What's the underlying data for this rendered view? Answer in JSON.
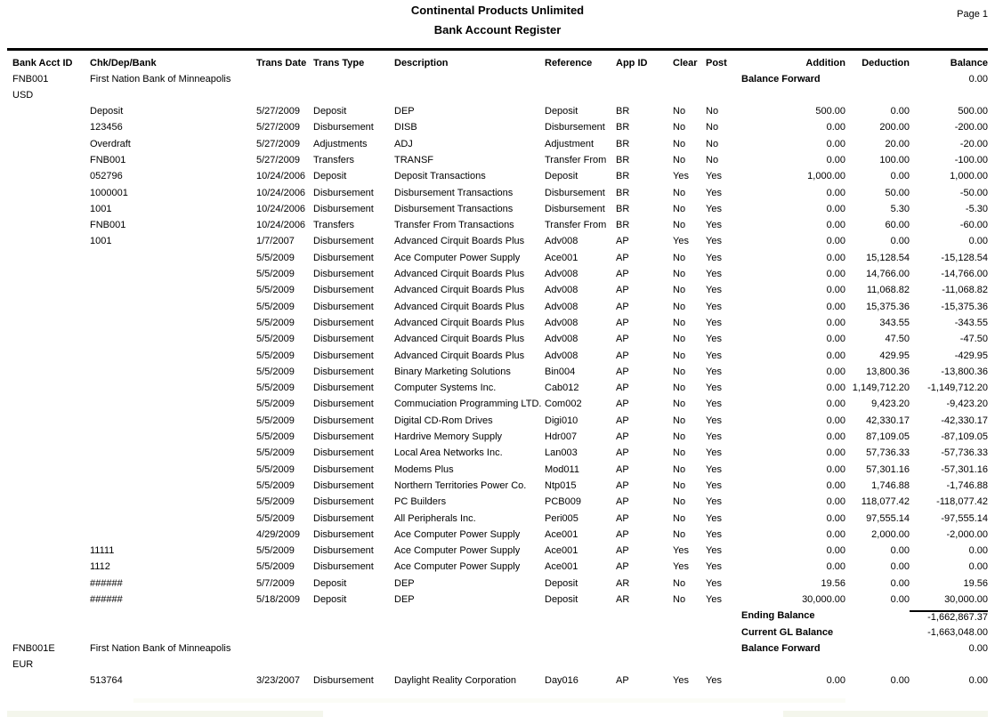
{
  "page": {
    "title_line1": "Continental Products Unlimited",
    "title_line2": "Bank Account Register",
    "page_number": "Page 1"
  },
  "table": {
    "columns": [
      "Bank Acct ID",
      "Chk/Dep/Bank",
      "Trans Date",
      "Trans Type",
      "Description",
      "Reference",
      "App ID",
      "Clear",
      "Post",
      "Addition",
      "Deduction",
      "Balance"
    ],
    "rows": [
      {
        "type": "account",
        "acct": "FNB001",
        "bank": "First Nation Bank of Minneapolis",
        "label": "Balance Forward",
        "value": "0.00"
      },
      {
        "type": "currency",
        "code": "USD"
      },
      {
        "type": "txn",
        "cells": [
          "Deposit",
          "5/27/2009",
          "Deposit",
          "DEP",
          "Deposit",
          "BR",
          "No",
          "No",
          "500.00",
          "0.00",
          "500.00"
        ]
      },
      {
        "type": "txn",
        "cells": [
          "123456",
          "5/27/2009",
          "Disbursement",
          "DISB",
          "Disbursement",
          "BR",
          "No",
          "No",
          "0.00",
          "200.00",
          "-200.00"
        ]
      },
      {
        "type": "txn",
        "cells": [
          "Overdraft",
          "5/27/2009",
          "Adjustments",
          "ADJ",
          "Adjustment",
          "BR",
          "No",
          "No",
          "0.00",
          "20.00",
          "-20.00"
        ]
      },
      {
        "type": "txn",
        "cells": [
          "FNB001",
          "5/27/2009",
          "Transfers",
          "TRANSF",
          "Transfer From",
          "BR",
          "No",
          "No",
          "0.00",
          "100.00",
          "-100.00"
        ]
      },
      {
        "type": "txn",
        "cells": [
          "052796",
          "10/24/2006",
          "Deposit",
          "Deposit Transactions",
          "Deposit",
          "BR",
          "Yes",
          "Yes",
          "1,000.00",
          "0.00",
          "1,000.00"
        ]
      },
      {
        "type": "txn",
        "cells": [
          "1000001",
          "10/24/2006",
          "Disbursement",
          "Disbursement Transactions",
          "Disbursement",
          "BR",
          "No",
          "Yes",
          "0.00",
          "50.00",
          "-50.00"
        ]
      },
      {
        "type": "txn",
        "cells": [
          "1001",
          "10/24/2006",
          "Disbursement",
          "Disbursement Transactions",
          "Disbursement",
          "BR",
          "No",
          "Yes",
          "0.00",
          "5.30",
          "-5.30"
        ]
      },
      {
        "type": "txn",
        "cells": [
          "FNB001",
          "10/24/2006",
          "Transfers",
          "Transfer From Transactions",
          "Transfer From",
          "BR",
          "No",
          "Yes",
          "0.00",
          "60.00",
          "-60.00"
        ]
      },
      {
        "type": "txn",
        "cells": [
          "1001",
          "1/7/2007",
          "Disbursement",
          "Advanced Cirquit Boards Plus",
          "Adv008",
          "AP",
          "Yes",
          "Yes",
          "0.00",
          "0.00",
          "0.00"
        ]
      },
      {
        "type": "txn",
        "cells": [
          "",
          "5/5/2009",
          "Disbursement",
          "Ace Computer Power Supply",
          "Ace001",
          "AP",
          "No",
          "Yes",
          "0.00",
          "15,128.54",
          "-15,128.54"
        ]
      },
      {
        "type": "txn",
        "cells": [
          "",
          "5/5/2009",
          "Disbursement",
          "Advanced Cirquit Boards Plus",
          "Adv008",
          "AP",
          "No",
          "Yes",
          "0.00",
          "14,766.00",
          "-14,766.00"
        ]
      },
      {
        "type": "txn",
        "cells": [
          "",
          "5/5/2009",
          "Disbursement",
          "Advanced Cirquit Boards Plus",
          "Adv008",
          "AP",
          "No",
          "Yes",
          "0.00",
          "11,068.82",
          "-11,068.82"
        ]
      },
      {
        "type": "txn",
        "cells": [
          "",
          "5/5/2009",
          "Disbursement",
          "Advanced Cirquit Boards Plus",
          "Adv008",
          "AP",
          "No",
          "Yes",
          "0.00",
          "15,375.36",
          "-15,375.36"
        ]
      },
      {
        "type": "txn",
        "cells": [
          "",
          "5/5/2009",
          "Disbursement",
          "Advanced Cirquit Boards Plus",
          "Adv008",
          "AP",
          "No",
          "Yes",
          "0.00",
          "343.55",
          "-343.55"
        ]
      },
      {
        "type": "txn",
        "cells": [
          "",
          "5/5/2009",
          "Disbursement",
          "Advanced Cirquit Boards Plus",
          "Adv008",
          "AP",
          "No",
          "Yes",
          "0.00",
          "47.50",
          "-47.50"
        ]
      },
      {
        "type": "txn",
        "cells": [
          "",
          "5/5/2009",
          "Disbursement",
          "Advanced Cirquit Boards Plus",
          "Adv008",
          "AP",
          "No",
          "Yes",
          "0.00",
          "429.95",
          "-429.95"
        ]
      },
      {
        "type": "txn",
        "cells": [
          "",
          "5/5/2009",
          "Disbursement",
          "Binary Marketing Solutions",
          "Bin004",
          "AP",
          "No",
          "Yes",
          "0.00",
          "13,800.36",
          "-13,800.36"
        ]
      },
      {
        "type": "txn",
        "cells": [
          "",
          "5/5/2009",
          "Disbursement",
          "Computer Systems Inc.",
          "Cab012",
          "AP",
          "No",
          "Yes",
          "0.00",
          "1,149,712.20",
          "-1,149,712.20"
        ]
      },
      {
        "type": "txn",
        "cells": [
          "",
          "5/5/2009",
          "Disbursement",
          "Commuciation Programming LTD.",
          "Com002",
          "AP",
          "No",
          "Yes",
          "0.00",
          "9,423.20",
          "-9,423.20"
        ]
      },
      {
        "type": "txn",
        "cells": [
          "",
          "5/5/2009",
          "Disbursement",
          "Digital CD-Rom Drives",
          "Digi010",
          "AP",
          "No",
          "Yes",
          "0.00",
          "42,330.17",
          "-42,330.17"
        ]
      },
      {
        "type": "txn",
        "cells": [
          "",
          "5/5/2009",
          "Disbursement",
          "Hardrive Memory Supply",
          "Hdr007",
          "AP",
          "No",
          "Yes",
          "0.00",
          "87,109.05",
          "-87,109.05"
        ]
      },
      {
        "type": "txn",
        "cells": [
          "",
          "5/5/2009",
          "Disbursement",
          "Local Area Networks Inc.",
          "Lan003",
          "AP",
          "No",
          "Yes",
          "0.00",
          "57,736.33",
          "-57,736.33"
        ]
      },
      {
        "type": "txn",
        "cells": [
          "",
          "5/5/2009",
          "Disbursement",
          "Modems Plus",
          "Mod011",
          "AP",
          "No",
          "Yes",
          "0.00",
          "57,301.16",
          "-57,301.16"
        ]
      },
      {
        "type": "txn",
        "cells": [
          "",
          "5/5/2009",
          "Disbursement",
          "Northern Territories Power Co.",
          "Ntp015",
          "AP",
          "No",
          "Yes",
          "0.00",
          "1,746.88",
          "-1,746.88"
        ]
      },
      {
        "type": "txn",
        "cells": [
          "",
          "5/5/2009",
          "Disbursement",
          "PC Builders",
          "PCB009",
          "AP",
          "No",
          "Yes",
          "0.00",
          "118,077.42",
          "-118,077.42"
        ]
      },
      {
        "type": "txn",
        "cells": [
          "",
          "5/5/2009",
          "Disbursement",
          "All Peripherals Inc.",
          "Peri005",
          "AP",
          "No",
          "Yes",
          "0.00",
          "97,555.14",
          "-97,555.14"
        ]
      },
      {
        "type": "txn",
        "cells": [
          "",
          "4/29/2009",
          "Disbursement",
          "Ace Computer Power Supply",
          "Ace001",
          "AP",
          "No",
          "Yes",
          "0.00",
          "2,000.00",
          "-2,000.00"
        ]
      },
      {
        "type": "txn",
        "cells": [
          "11111",
          "5/5/2009",
          "Disbursement",
          "Ace Computer Power Supply",
          "Ace001",
          "AP",
          "Yes",
          "Yes",
          "0.00",
          "0.00",
          "0.00"
        ]
      },
      {
        "type": "txn",
        "cells": [
          "1112",
          "5/5/2009",
          "Disbursement",
          "Ace Computer Power Supply",
          "Ace001",
          "AP",
          "Yes",
          "Yes",
          "0.00",
          "0.00",
          "0.00"
        ]
      },
      {
        "type": "txn",
        "cells": [
          "######",
          "5/7/2009",
          "Deposit",
          "DEP",
          "Deposit",
          "AR",
          "No",
          "Yes",
          "19.56",
          "0.00",
          "19.56"
        ]
      },
      {
        "type": "txn",
        "cells": [
          "######",
          "5/18/2009",
          "Deposit",
          "DEP",
          "Deposit",
          "AR",
          "No",
          "Yes",
          "30,000.00",
          "0.00",
          "30,000.00"
        ]
      },
      {
        "type": "total",
        "label": "Ending Balance",
        "value": "-1,662,867.37",
        "topline": true
      },
      {
        "type": "total",
        "label": "Current GL Balance",
        "value": "-1,663,048.00"
      },
      {
        "type": "account",
        "acct": "FNB001E",
        "bank": "First Nation Bank of Minneapolis",
        "label": "Balance Forward",
        "value": "0.00"
      },
      {
        "type": "currency",
        "code": "EUR"
      },
      {
        "type": "txn",
        "cells": [
          "513764",
          "3/23/2007",
          "Disbursement",
          "Daylight Reality Corporation",
          "Day016",
          "AP",
          "Yes",
          "Yes",
          "0.00",
          "0.00",
          "0.00"
        ]
      }
    ]
  }
}
